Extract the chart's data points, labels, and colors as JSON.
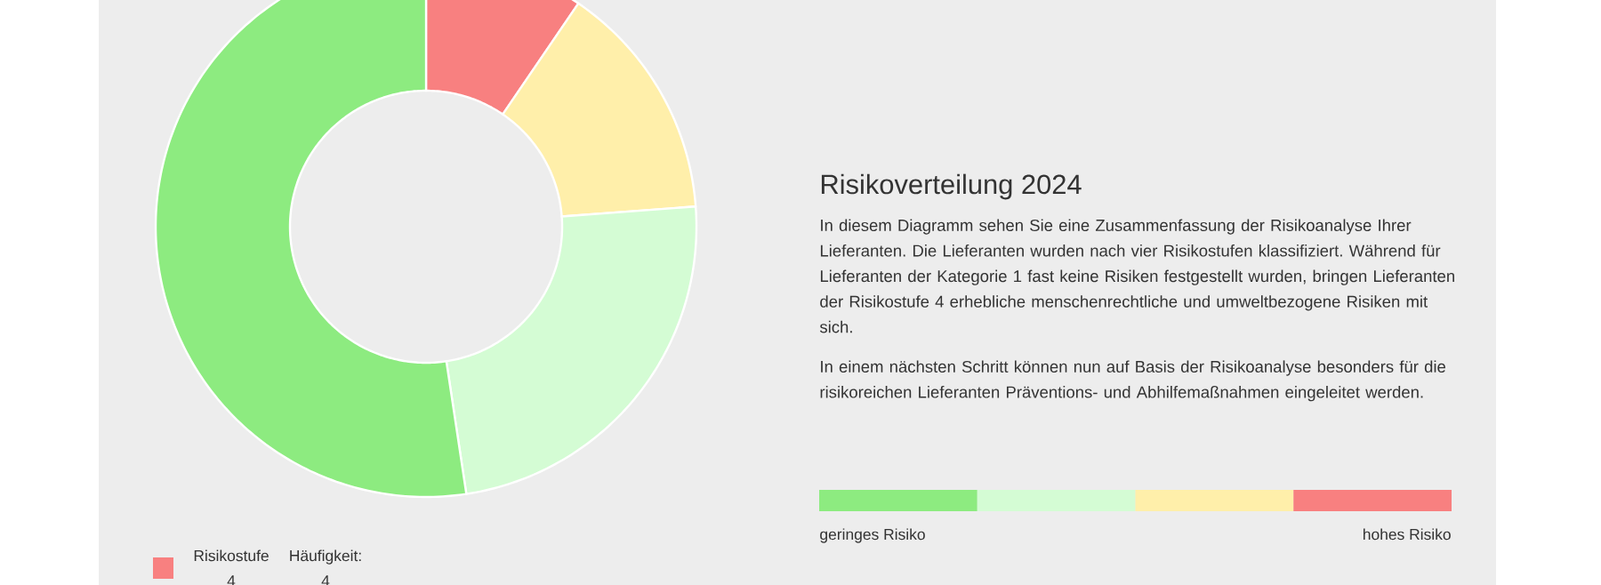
{
  "chart_data": {
    "type": "donut",
    "title": "Risikoverteilung 2024",
    "categories": [
      "Risikostufe 4",
      null,
      null,
      null
    ],
    "values": [
      4,
      6,
      10,
      22
    ],
    "colors": [
      "#f88080",
      "#ffefaa",
      "#d4fcd4",
      "#8deb80"
    ],
    "value_labels": [
      "Häufigkeit: 4",
      null,
      null,
      null
    ],
    "legend": "bottom left",
    "annotations": [
      "In diesem Diagramm sehen Sie eine Zusammenfassung der Risikoanalyse Ihrer Lieferanten. Die Lieferanten wurden nach vier Risikostufen klassifiziert. Während für Lieferanten der Kategorie 1 fast keine Risiken festgestellt wurden, bringen Lieferanten der Risikostufe 4 erhebliche menschenrechtliche und umweltbezogene Risiken mit sich.",
      "In einem nächsten Schritt können nun auf Basis der Risikoanalyse besonders für die risikoreichen Lieferanten Präventions- und Abhilfemaßnahmen eingeleitet werden.",
      "geringes Risiko",
      "hohes Risiko"
    ]
  }
}
